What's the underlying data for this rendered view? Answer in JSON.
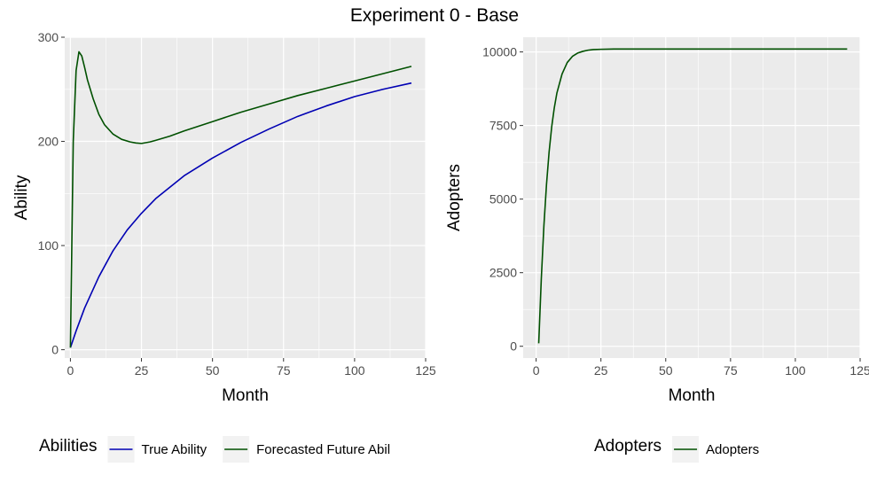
{
  "title": "Experiment 0 - Base",
  "chart_data": [
    {
      "type": "line",
      "xlabel": "Month",
      "ylabel": "Ability",
      "xlim": [
        -2,
        125
      ],
      "ylim": [
        -8,
        300
      ],
      "xticks": [
        0,
        25,
        50,
        75,
        100,
        125
      ],
      "yticks": [
        0,
        100,
        200,
        300
      ],
      "x_tick_labels": [
        "0",
        "25",
        "50",
        "75",
        "100",
        "125"
      ],
      "y_tick_labels": [
        "0",
        "100",
        "200",
        "300"
      ],
      "grid": true,
      "legend": {
        "title": "Abilities",
        "position": "bottom",
        "entries": [
          "True Ability",
          "Forecasted Future Abil"
        ]
      },
      "series": [
        {
          "name": "True Ability",
          "color": "#0000b3",
          "x": [
            0,
            2,
            5,
            10,
            15,
            20,
            25,
            30,
            40,
            50,
            60,
            70,
            80,
            90,
            100,
            110,
            120
          ],
          "y": [
            2,
            18,
            40,
            70,
            95,
            115,
            131,
            145,
            167,
            184,
            199,
            212,
            224,
            234,
            243,
            250,
            256
          ]
        },
        {
          "name": "Forecasted Future Abil",
          "color": "#005000",
          "x": [
            0,
            1,
            2,
            3,
            4,
            5,
            6,
            8,
            10,
            12,
            15,
            18,
            21,
            23,
            25,
            28,
            30,
            35,
            40,
            50,
            60,
            70,
            80,
            90,
            100,
            110,
            120
          ],
          "y": [
            2,
            200,
            268,
            286,
            282,
            271,
            259,
            241,
            226,
            216,
            207,
            202,
            199.5,
            198.5,
            198,
            199.5,
            201,
            205,
            210,
            219,
            228,
            236,
            244,
            251,
            258,
            265,
            272
          ]
        }
      ]
    },
    {
      "type": "line",
      "xlabel": "Month",
      "ylabel": "Adopters",
      "xlim": [
        -5,
        125
      ],
      "ylim": [
        -400,
        10500
      ],
      "xticks": [
        0,
        25,
        50,
        75,
        100,
        125
      ],
      "yticks": [
        0,
        2500,
        5000,
        7500,
        10000
      ],
      "x_tick_labels": [
        "0",
        "25",
        "50",
        "75",
        "100",
        "125"
      ],
      "y_tick_labels": [
        "0",
        "2500",
        "5000",
        "7500",
        "10000"
      ],
      "grid": true,
      "legend": {
        "title": "Adopters",
        "position": "bottom",
        "entries": [
          "Adopters"
        ]
      },
      "series": [
        {
          "name": "Adopters",
          "color": "#005000",
          "x": [
            1,
            2,
            3,
            4,
            5,
            6,
            7,
            8,
            10,
            12,
            14,
            16,
            18,
            20,
            22,
            25,
            30,
            40,
            60,
            80,
            100,
            120
          ],
          "y": [
            100,
            2300,
            4100,
            5500,
            6600,
            7450,
            8100,
            8600,
            9250,
            9640,
            9850,
            9960,
            10020,
            10060,
            10080,
            10090,
            10100,
            10100,
            10100,
            10100,
            10100,
            10100
          ]
        }
      ]
    }
  ]
}
